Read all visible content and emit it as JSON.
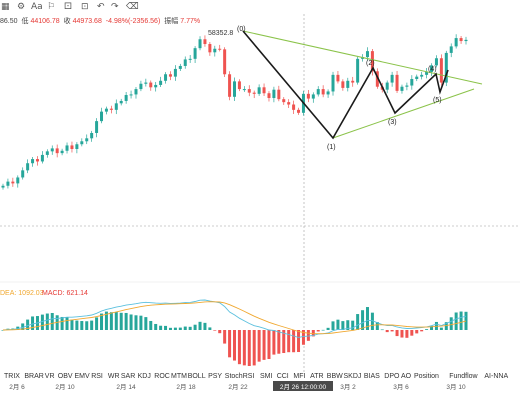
{
  "toolbar": {
    "icons": [
      "chart-type-icon",
      "settings-icon",
      "text-icon",
      "drawing-icon",
      "indicator-icon",
      "timeframe-icon",
      "undo-icon",
      "redo-icon",
      "delete-icon"
    ],
    "text_label": "Aa"
  },
  "info": {
    "open_value": "86.50",
    "low_label": "低",
    "low_value": "44106.78",
    "close_label": "收",
    "close_value": "44973.68",
    "change": "-4.98%(-2356.56)",
    "amp_label": "振幅",
    "amp_value": "7.77%"
  },
  "macd_legend": {
    "dea": "DEA: 1092.03",
    "macd": "MACD: 621.14"
  },
  "indicator_tabs": [
    "TRIX",
    "BRAR",
    "VR",
    "OBV",
    "EMV",
    "RSI",
    "WR",
    "SAR",
    "KDJ",
    "ROC",
    "MTM",
    "BOLL",
    "PSY",
    "StochRSI",
    "SMI",
    "CCI",
    "MFI",
    "ATR",
    "BBW",
    "SKDJ",
    "BIAS",
    "DPO",
    "AO",
    "Position",
    "Fundflow",
    "AI-NNA"
  ],
  "date_labels": [
    "2月 6",
    "2月 10",
    "2月 14",
    "2月 18",
    "2月 22",
    "2月 26 12:00:00",
    "3月 2",
    "3月 6",
    "3月 10"
  ],
  "chart_data": {
    "type": "candlestick",
    "annotations": {
      "high_label": "58352.8",
      "wave_labels": [
        "(0)",
        "(1)",
        "(2)",
        "(3)",
        "(4)",
        "(5)"
      ]
    },
    "colors": {
      "up": "#26a69a",
      "down": "#ef5350",
      "pattern": "#1b1b1b",
      "trendline": "#8bc34a",
      "dif": "#5bc0de",
      "dea": "#f0a830"
    },
    "series": [
      {
        "type": "candlestick",
        "approx_close": [
          32400,
          33100,
          32800,
          33800,
          35000,
          36200,
          36900,
          36500,
          37600,
          38200,
          38700,
          37900,
          38300,
          39200,
          38600,
          39400,
          39900,
          40400,
          41300,
          43300,
          44900,
          45400,
          45200,
          46300,
          46700,
          47700,
          47800,
          48700,
          49600,
          49800,
          49000,
          49400,
          50100,
          51200,
          50800,
          52100,
          52600,
          53700,
          53800,
          55600,
          57100,
          56300,
          54900,
          55500,
          55400,
          51200,
          47400,
          50000,
          48700,
          48700,
          48100,
          47900,
          49000,
          48000,
          47200,
          48600,
          47000,
          46500,
          46100,
          45200,
          44700,
          47900,
          47100,
          47800,
          48700,
          47800,
          48300,
          51100,
          50000,
          48900,
          50100,
          49800,
          53800,
          54100,
          55100,
          51700,
          49100,
          48600,
          49800,
          51100,
          48400,
          49100,
          49300,
          50400,
          50800,
          51100,
          51600,
          52700,
          53900,
          49800,
          54800,
          55900,
          57300,
          56800,
          57000
        ]
      }
    ]
  }
}
